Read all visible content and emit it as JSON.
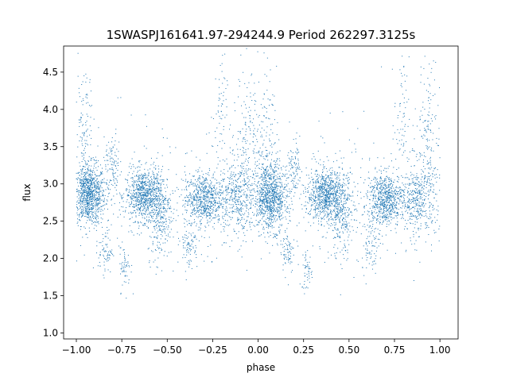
{
  "chart_data": {
    "type": "scatter",
    "title": "1SWASPJ161641.97-294244.9 Period 262297.3125s",
    "xlabel": "phase",
    "ylabel": "flux",
    "xlim": [
      -1.07,
      1.1
    ],
    "ylim": [
      0.92,
      4.85
    ],
    "x_ticks": [
      -1.0,
      -0.75,
      -0.5,
      -0.25,
      0.0,
      0.25,
      0.5,
      0.75,
      1.0
    ],
    "x_tick_labels": [
      "−1.00",
      "−0.75",
      "−0.50",
      "−0.25",
      "0.00",
      "0.25",
      "0.50",
      "0.75",
      "1.00"
    ],
    "y_ticks": [
      1.0,
      1.5,
      2.0,
      2.5,
      3.0,
      3.5,
      4.0,
      4.5
    ],
    "y_tick_labels": [
      "1.0",
      "1.5",
      "2.0",
      "2.5",
      "3.0",
      "3.5",
      "4.0",
      "4.5"
    ],
    "grid": false,
    "marker_color": "#1f77b4",
    "series": [
      {
        "clusters": [
          {
            "x": -0.93,
            "y": 2.85,
            "sx": 0.045,
            "sy": 0.2,
            "n": 900
          },
          {
            "x": -0.63,
            "y": 2.85,
            "sx": 0.05,
            "sy": 0.17,
            "n": 750
          },
          {
            "x": -0.54,
            "y": 2.6,
            "sx": 0.035,
            "sy": 0.3,
            "n": 300
          },
          {
            "x": -0.3,
            "y": 2.8,
            "sx": 0.05,
            "sy": 0.17,
            "n": 650
          },
          {
            "x": -0.12,
            "y": 2.8,
            "sx": 0.05,
            "sy": 0.25,
            "n": 400
          },
          {
            "x": 0.07,
            "y": 2.82,
            "sx": 0.045,
            "sy": 0.22,
            "n": 900
          },
          {
            "x": 0.37,
            "y": 2.85,
            "sx": 0.05,
            "sy": 0.17,
            "n": 750
          },
          {
            "x": 0.46,
            "y": 2.6,
            "sx": 0.035,
            "sy": 0.3,
            "n": 300
          },
          {
            "x": 0.7,
            "y": 2.8,
            "sx": 0.05,
            "sy": 0.17,
            "n": 650
          },
          {
            "x": 0.88,
            "y": 2.8,
            "sx": 0.05,
            "sy": 0.25,
            "n": 400
          },
          {
            "x": -0.96,
            "y": 3.6,
            "sx": 0.03,
            "sy": 0.45,
            "n": 140
          },
          {
            "x": 0.04,
            "y": 3.6,
            "sx": 0.03,
            "sy": 0.45,
            "n": 140
          },
          {
            "x": -0.06,
            "y": 3.7,
            "sx": 0.03,
            "sy": 0.45,
            "n": 130
          },
          {
            "x": 0.94,
            "y": 3.7,
            "sx": 0.03,
            "sy": 0.45,
            "n": 130
          },
          {
            "x": -0.8,
            "y": 3.2,
            "sx": 0.02,
            "sy": 0.2,
            "n": 90
          },
          {
            "x": 0.2,
            "y": 3.2,
            "sx": 0.02,
            "sy": 0.2,
            "n": 90
          },
          {
            "x": -0.21,
            "y": 3.9,
            "sx": 0.02,
            "sy": 0.4,
            "n": 60
          },
          {
            "x": 0.79,
            "y": 3.9,
            "sx": 0.02,
            "sy": 0.4,
            "n": 60
          },
          {
            "x": -0.84,
            "y": 2.1,
            "sx": 0.02,
            "sy": 0.15,
            "n": 70
          },
          {
            "x": 0.16,
            "y": 2.1,
            "sx": 0.02,
            "sy": 0.15,
            "n": 70
          },
          {
            "x": -0.73,
            "y": 1.85,
            "sx": 0.015,
            "sy": 0.15,
            "n": 50
          },
          {
            "x": 0.27,
            "y": 1.85,
            "sx": 0.015,
            "sy": 0.15,
            "n": 50
          },
          {
            "x": -0.38,
            "y": 2.2,
            "sx": 0.025,
            "sy": 0.18,
            "n": 90
          },
          {
            "x": 0.62,
            "y": 2.2,
            "sx": 0.025,
            "sy": 0.18,
            "n": 90
          }
        ],
        "background": {
          "n": 500,
          "x_range": [
            -1.0,
            1.0
          ],
          "y_mean": 2.85,
          "y_sd": 0.45
        }
      }
    ]
  }
}
